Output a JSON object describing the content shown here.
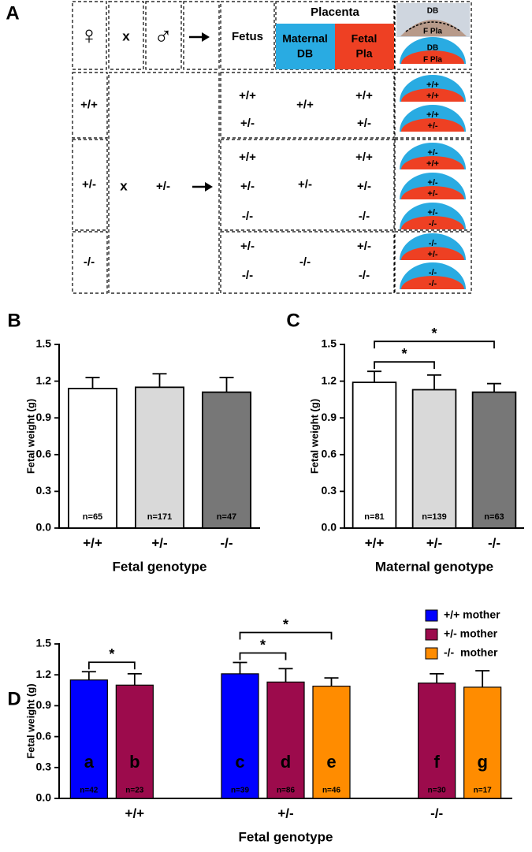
{
  "panel_a": {
    "label": "A",
    "header": {
      "female": "♀",
      "cross": "x",
      "male": "♂",
      "fetus": "Fetus",
      "placenta": "Placenta",
      "maternal": [
        "Maternal",
        "DB"
      ],
      "fetal": [
        "Fetal",
        "Pla"
      ],
      "photo": [
        "DB",
        "F Pla"
      ],
      "diagram": [
        "DB",
        "F Pla"
      ]
    },
    "cross": "x",
    "male_genotype": "+/-",
    "rows": [
      {
        "female": "+/+",
        "fetus": [
          "+/+",
          "+/-"
        ],
        "db": "+/+",
        "pla": [
          "+/+",
          "+/-"
        ],
        "icons": [
          [
            "+/+",
            "+/+"
          ],
          [
            "+/+",
            "+/-"
          ]
        ]
      },
      {
        "female": "+/-",
        "fetus": [
          "+/+",
          "+/-",
          "-/-"
        ],
        "db": "+/-",
        "pla": [
          "+/+",
          "+/-",
          "-/-"
        ],
        "icons": [
          [
            "+/-",
            "+/+"
          ],
          [
            "+/-",
            "+/-"
          ],
          [
            "+/-",
            "-/-"
          ]
        ]
      },
      {
        "female": "-/-",
        "fetus": [
          "+/-",
          "-/-"
        ],
        "db": "-/-",
        "pla": [
          "+/-",
          "-/-"
        ],
        "icons": [
          [
            "-/-",
            "+/-"
          ],
          [
            "-/-",
            "-/-"
          ]
        ]
      }
    ]
  },
  "chart_data": [
    {
      "type": "bar",
      "label": "B",
      "ylabel": "Fetal weight (g)",
      "xlabel": "Fetal genotype",
      "categories": [
        "+/+",
        "+/-",
        "-/-"
      ],
      "values": [
        1.14,
        1.15,
        1.11
      ],
      "errors": [
        0.09,
        0.11,
        0.12
      ],
      "n_labels": [
        "n=65",
        "n=171",
        "n=47"
      ],
      "colors": [
        "#ffffff",
        "#d9d9d9",
        "#777777"
      ],
      "ylim": [
        0,
        1.5
      ],
      "yticks": [
        {
          "value": 0,
          "label": "0.0"
        },
        0.3,
        0.6,
        0.9,
        1.2,
        1.5
      ]
    },
    {
      "type": "bar",
      "label": "C",
      "ylabel": "Fetal weight (g)",
      "xlabel": "Maternal genotype",
      "categories": [
        "+/+",
        "+/-",
        "-/-"
      ],
      "values": [
        1.19,
        1.13,
        1.11
      ],
      "errors": [
        0.09,
        0.12,
        0.07
      ],
      "n_labels": [
        "n=81",
        "n=139",
        "n=63"
      ],
      "colors": [
        "#ffffff",
        "#d9d9d9",
        "#777777"
      ],
      "ylim": [
        0,
        1.5
      ],
      "yticks": [
        {
          "value": 0,
          "label": "0.0"
        },
        0.3,
        0.6,
        0.9,
        1.2,
        1.5
      ],
      "significance": [
        {
          "from": 0,
          "to": 1,
          "label": "*"
        },
        {
          "from": 0,
          "to": 2,
          "label": "*"
        }
      ]
    },
    {
      "type": "grouped_bar",
      "label": "D",
      "ylabel": "Fetal weight (g)",
      "xlabel": "Fetal genotype",
      "categories": [
        "+/+",
        "+/-",
        "-/-"
      ],
      "legend": "upper right",
      "series": [
        {
          "name": "+/+ mother",
          "color": "#0000ff",
          "values": [
            1.15,
            1.21,
            null
          ],
          "errors": [
            0.08,
            0.11,
            null
          ],
          "letters": [
            "a",
            "c",
            null
          ],
          "n_labels": [
            "n=42",
            "n=39",
            null
          ]
        },
        {
          "name": "+/- mother",
          "color": "#9c0b4c",
          "values": [
            1.1,
            1.13,
            1.12
          ],
          "errors": [
            0.11,
            0.13,
            0.09
          ],
          "letters": [
            "b",
            "d",
            "f"
          ],
          "n_labels": [
            "n=23",
            "n=86",
            "n=30"
          ]
        },
        {
          "name": "-/-  mother",
          "color": "#ff8c00",
          "values": [
            null,
            1.09,
            1.08
          ],
          "errors": [
            null,
            0.08,
            0.16
          ],
          "letters": [
            null,
            "e",
            "g"
          ],
          "n_labels": [
            null,
            "n=46",
            "n=17"
          ]
        }
      ],
      "ylim": [
        0,
        1.5
      ],
      "yticks": [
        {
          "value": 0,
          "label": "0.0"
        },
        0.3,
        0.6,
        0.9,
        1.2,
        1.5
      ],
      "significance": [
        {
          "group": 0,
          "from": 0,
          "to": 1,
          "label": "*"
        },
        {
          "group": 1,
          "from": 0,
          "to": 1,
          "label": "*"
        },
        {
          "group": 1,
          "from": 0,
          "to": 2,
          "label": "*"
        }
      ]
    }
  ]
}
